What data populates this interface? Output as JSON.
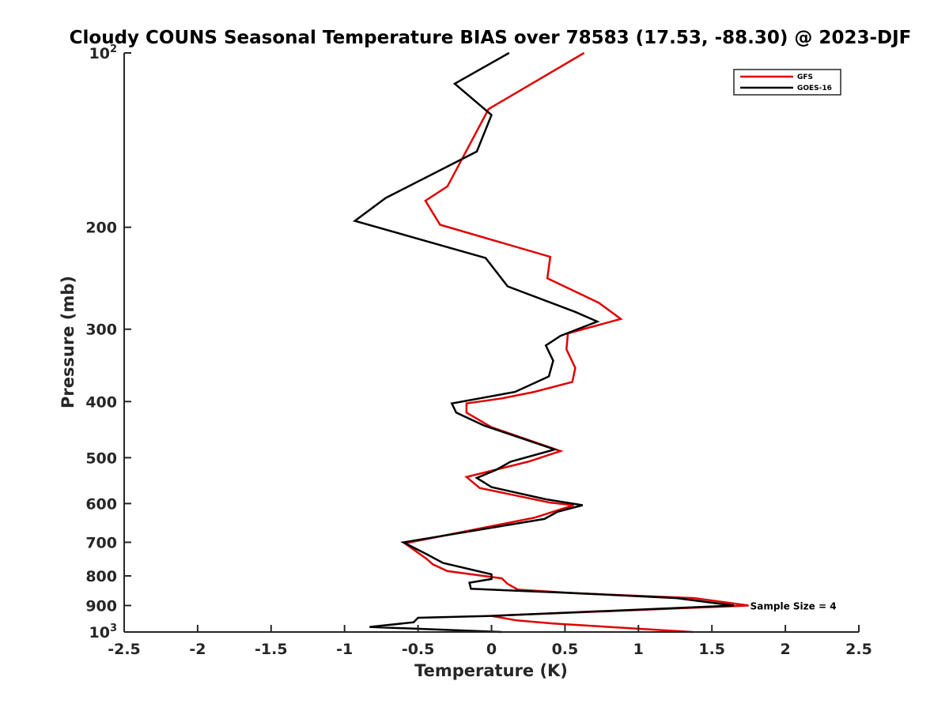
{
  "chart_data": {
    "type": "line",
    "title": "Cloudy COUNS Seasonal Temperature BIAS over 78583 (17.53, -88.30) @ 2023-DJF",
    "xlabel": "Temperature (K)",
    "ylabel": "Pressure (mb)",
    "xlim": [
      -2.5,
      2.5
    ],
    "ylim": [
      100,
      1000
    ],
    "y_scale": "log",
    "y_reversed": true,
    "grid": false,
    "legend_placement": "top-right",
    "x_ticks": [
      -2.5,
      -2,
      -1.5,
      -1,
      -0.5,
      0,
      0.5,
      1,
      1.5,
      2,
      2.5
    ],
    "x_tick_labels": [
      "-2.5",
      "-2",
      "-1.5",
      "-1",
      "-0.5",
      "0",
      "0.5",
      "1",
      "1.5",
      "2",
      "2.5"
    ],
    "y_ticks": [
      {
        "value": 100,
        "base": "10",
        "exp": "2"
      },
      {
        "value": 200,
        "label": "200"
      },
      {
        "value": 300,
        "label": "300"
      },
      {
        "value": 400,
        "label": "400"
      },
      {
        "value": 500,
        "label": "500"
      },
      {
        "value": 600,
        "label": "600"
      },
      {
        "value": 700,
        "label": "700"
      },
      {
        "value": 800,
        "label": "800"
      },
      {
        "value": 900,
        "label": "900"
      },
      {
        "value": 1000,
        "base": "10",
        "exp": "3"
      }
    ],
    "annotation": {
      "text": "Sample Size = 4",
      "x": 1.75,
      "y": 900
    },
    "series": [
      {
        "name": "GFS",
        "color": "#e00000",
        "points": [
          [
            0.63,
            100
          ],
          [
            -0.02,
            125
          ],
          [
            -0.3,
            170
          ],
          [
            -0.45,
            180
          ],
          [
            -0.35,
            198
          ],
          [
            0.4,
            225
          ],
          [
            0.38,
            245
          ],
          [
            0.73,
            270
          ],
          [
            0.88,
            288
          ],
          [
            0.52,
            305
          ],
          [
            0.51,
            325
          ],
          [
            0.57,
            350
          ],
          [
            0.55,
            370
          ],
          [
            0.29,
            385
          ],
          [
            0.07,
            395
          ],
          [
            -0.17,
            403
          ],
          [
            -0.17,
            418
          ],
          [
            0.0,
            443
          ],
          [
            0.47,
            487
          ],
          [
            0.25,
            508
          ],
          [
            -0.17,
            540
          ],
          [
            -0.08,
            564
          ],
          [
            0.4,
            598
          ],
          [
            0.56,
            604
          ],
          [
            0.29,
            635
          ],
          [
            -0.59,
            703
          ],
          [
            -0.44,
            748
          ],
          [
            -0.4,
            764
          ],
          [
            -0.3,
            785
          ],
          [
            0.07,
            808
          ],
          [
            0.11,
            826
          ],
          [
            0.18,
            845
          ],
          [
            0.6,
            858
          ],
          [
            1.38,
            874
          ],
          [
            1.75,
            900
          ],
          [
            0.0,
            938
          ],
          [
            0.17,
            955
          ],
          [
            0.42,
            967
          ],
          [
            1.37,
            1000
          ]
        ]
      },
      {
        "name": "GOES-16",
        "color": "#000000",
        "points": [
          [
            0.12,
            100
          ],
          [
            -0.25,
            113
          ],
          [
            0.0,
            128
          ],
          [
            -0.1,
            148
          ],
          [
            -0.72,
            178
          ],
          [
            -0.93,
            195
          ],
          [
            -0.04,
            226
          ],
          [
            0.11,
            253
          ],
          [
            0.57,
            280
          ],
          [
            0.72,
            291
          ],
          [
            0.47,
            308
          ],
          [
            0.37,
            320
          ],
          [
            0.42,
            340
          ],
          [
            0.39,
            362
          ],
          [
            0.16,
            385
          ],
          [
            -0.27,
            403
          ],
          [
            -0.24,
            418
          ],
          [
            -0.05,
            440
          ],
          [
            0.43,
            484
          ],
          [
            0.13,
            508
          ],
          [
            0.03,
            525
          ],
          [
            -0.1,
            542
          ],
          [
            0.0,
            562
          ],
          [
            0.37,
            590
          ],
          [
            0.62,
            604
          ],
          [
            0.45,
            620
          ],
          [
            0.36,
            638
          ],
          [
            -0.6,
            700
          ],
          [
            -0.44,
            734
          ],
          [
            -0.33,
            760
          ],
          [
            0.0,
            795
          ],
          [
            0.0,
            810
          ],
          [
            -0.15,
            822
          ],
          [
            -0.14,
            842
          ],
          [
            0.58,
            857
          ],
          [
            1.26,
            874
          ],
          [
            1.65,
            900
          ],
          [
            0.0,
            938
          ],
          [
            -0.5,
            945
          ],
          [
            -0.53,
            962
          ],
          [
            -0.83,
            980
          ],
          [
            0.07,
            1000
          ]
        ]
      }
    ]
  }
}
